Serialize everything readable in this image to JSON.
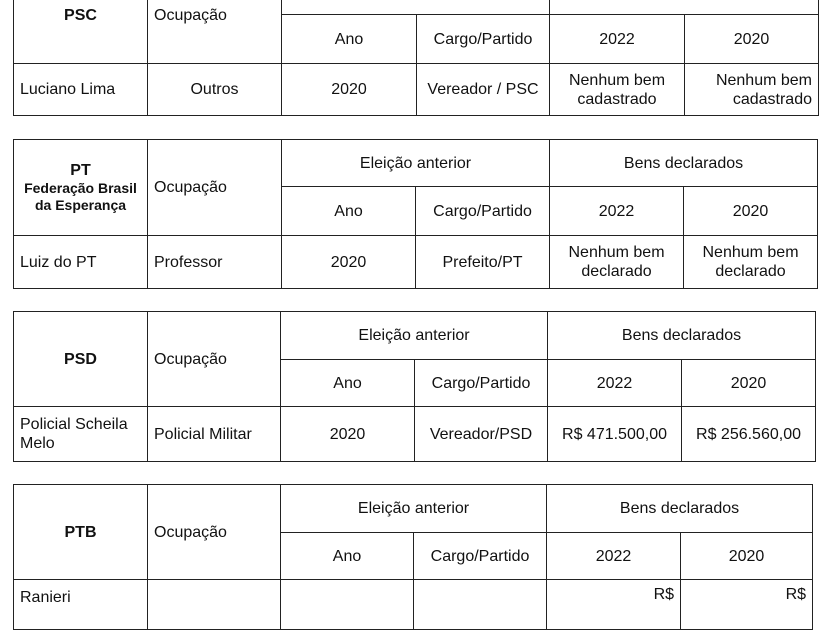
{
  "headers": {
    "occupation": "Ocupação",
    "previous_election": "Eleição anterior",
    "declared_assets": "Bens declarados",
    "year": "Ano",
    "office_party": "Cargo/Partido",
    "year_2022": "2022",
    "year_2020": "2020"
  },
  "tables": [
    {
      "party": "PSC",
      "candidate": {
        "name": "Luciano Lima",
        "occupation": "Outros",
        "prev_year": "2020",
        "prev_office": "Vereador / PSC",
        "assets_2022": "Nenhum bem cadastrado",
        "assets_2020": "Nenhum bem cadastrado"
      }
    },
    {
      "party": "PT",
      "party_sub": "Federação Brasil da Esperança",
      "candidate": {
        "name": "Luiz do PT",
        "occupation": "Professor",
        "prev_year": "2020",
        "prev_office": "Prefeito/PT",
        "assets_2022": "Nenhum bem declarado",
        "assets_2020": "Nenhum bem declarado"
      }
    },
    {
      "party": "PSD",
      "candidate": {
        "name": "Policial Scheila Melo",
        "occupation": "Policial Militar",
        "prev_year": "2020",
        "prev_office": "Vereador/PSD",
        "assets_2022": "R$ 471.500,00",
        "assets_2020": "R$ 256.560,00"
      }
    },
    {
      "party": "PTB",
      "candidate": {
        "name": "Ranieri",
        "assets_2022": "R$",
        "assets_2020": "R$"
      }
    }
  ]
}
